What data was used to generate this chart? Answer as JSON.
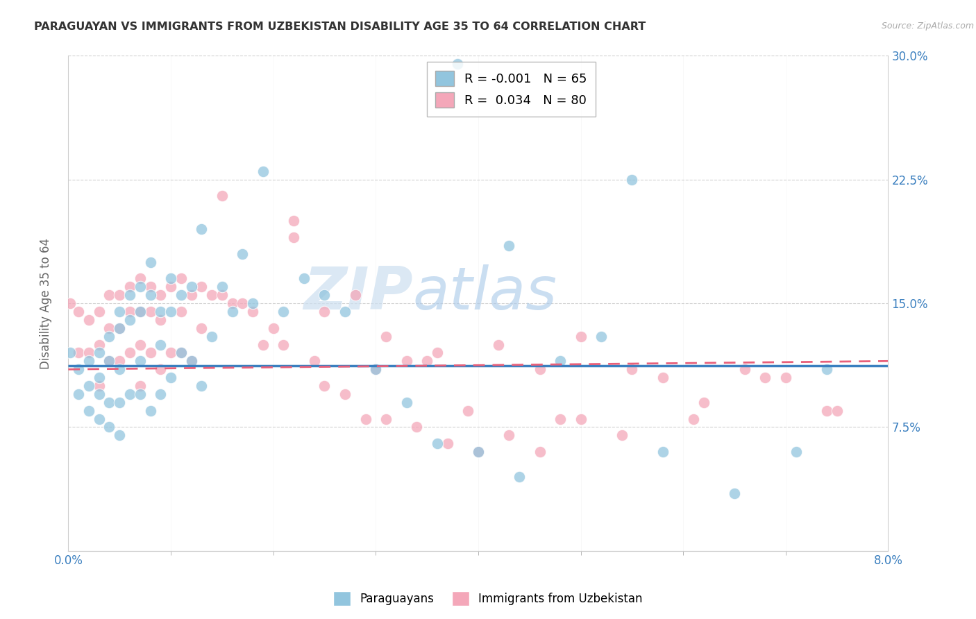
{
  "title": "PARAGUAYAN VS IMMIGRANTS FROM UZBEKISTAN DISABILITY AGE 35 TO 64 CORRELATION CHART",
  "source": "Source: ZipAtlas.com",
  "ylabel": "Disability Age 35 to 64",
  "xlim": [
    0.0,
    0.08
  ],
  "ylim": [
    0.0,
    0.3
  ],
  "yticks": [
    0.0,
    0.075,
    0.15,
    0.225,
    0.3
  ],
  "ytick_labels": [
    "",
    "7.5%",
    "15.0%",
    "22.5%",
    "30.0%"
  ],
  "xtick_vals": [
    0.0,
    0.08
  ],
  "xtick_labels": [
    "0.0%",
    "8.0%"
  ],
  "legend_r1": "R = -0.001",
  "legend_n1": "N = 65",
  "legend_r2": "R =  0.034",
  "legend_n2": "N = 80",
  "color_blue": "#92c5de",
  "color_pink": "#f4a7b9",
  "color_blue_line": "#3a7fbf",
  "color_pink_line": "#e8607a",
  "watermark_zip": "ZIP",
  "watermark_atlas": "atlas",
  "paraguayans_x": [
    0.0002,
    0.001,
    0.001,
    0.002,
    0.002,
    0.002,
    0.003,
    0.003,
    0.003,
    0.003,
    0.004,
    0.004,
    0.004,
    0.004,
    0.005,
    0.005,
    0.005,
    0.005,
    0.005,
    0.006,
    0.006,
    0.006,
    0.007,
    0.007,
    0.007,
    0.007,
    0.008,
    0.008,
    0.008,
    0.009,
    0.009,
    0.009,
    0.01,
    0.01,
    0.01,
    0.011,
    0.011,
    0.012,
    0.012,
    0.013,
    0.013,
    0.014,
    0.015,
    0.016,
    0.017,
    0.018,
    0.019,
    0.021,
    0.023,
    0.025,
    0.027,
    0.03,
    0.033,
    0.036,
    0.04,
    0.044,
    0.048,
    0.052,
    0.058,
    0.065,
    0.071,
    0.038,
    0.043,
    0.055,
    0.074
  ],
  "paraguayans_y": [
    0.12,
    0.11,
    0.095,
    0.115,
    0.1,
    0.085,
    0.105,
    0.12,
    0.095,
    0.08,
    0.13,
    0.115,
    0.09,
    0.075,
    0.145,
    0.135,
    0.11,
    0.09,
    0.07,
    0.155,
    0.14,
    0.095,
    0.16,
    0.145,
    0.115,
    0.095,
    0.175,
    0.155,
    0.085,
    0.145,
    0.125,
    0.095,
    0.165,
    0.145,
    0.105,
    0.155,
    0.12,
    0.16,
    0.115,
    0.195,
    0.1,
    0.13,
    0.16,
    0.145,
    0.18,
    0.15,
    0.23,
    0.145,
    0.165,
    0.155,
    0.145,
    0.11,
    0.09,
    0.065,
    0.06,
    0.045,
    0.115,
    0.13,
    0.06,
    0.035,
    0.06,
    0.295,
    0.185,
    0.225,
    0.11
  ],
  "uzbekistan_x": [
    0.0002,
    0.001,
    0.001,
    0.002,
    0.002,
    0.003,
    0.003,
    0.003,
    0.004,
    0.004,
    0.004,
    0.005,
    0.005,
    0.005,
    0.006,
    0.006,
    0.006,
    0.007,
    0.007,
    0.007,
    0.007,
    0.008,
    0.008,
    0.008,
    0.009,
    0.009,
    0.009,
    0.01,
    0.01,
    0.011,
    0.011,
    0.011,
    0.012,
    0.012,
    0.013,
    0.013,
    0.014,
    0.015,
    0.015,
    0.016,
    0.017,
    0.018,
    0.019,
    0.02,
    0.021,
    0.022,
    0.024,
    0.025,
    0.027,
    0.029,
    0.031,
    0.033,
    0.036,
    0.039,
    0.042,
    0.046,
    0.05,
    0.055,
    0.061,
    0.068,
    0.074,
    0.03,
    0.035,
    0.048,
    0.022,
    0.025,
    0.028,
    0.031,
    0.034,
    0.037,
    0.04,
    0.043,
    0.046,
    0.05,
    0.054,
    0.058,
    0.062,
    0.066,
    0.07,
    0.075
  ],
  "uzbekistan_y": [
    0.15,
    0.145,
    0.12,
    0.14,
    0.12,
    0.145,
    0.125,
    0.1,
    0.155,
    0.135,
    0.115,
    0.155,
    0.135,
    0.115,
    0.16,
    0.145,
    0.12,
    0.165,
    0.145,
    0.125,
    0.1,
    0.16,
    0.145,
    0.12,
    0.155,
    0.14,
    0.11,
    0.16,
    0.12,
    0.165,
    0.145,
    0.12,
    0.155,
    0.115,
    0.16,
    0.135,
    0.155,
    0.215,
    0.155,
    0.15,
    0.15,
    0.145,
    0.125,
    0.135,
    0.125,
    0.19,
    0.115,
    0.1,
    0.095,
    0.08,
    0.08,
    0.115,
    0.12,
    0.085,
    0.125,
    0.11,
    0.13,
    0.11,
    0.08,
    0.105,
    0.085,
    0.11,
    0.115,
    0.08,
    0.2,
    0.145,
    0.155,
    0.13,
    0.075,
    0.065,
    0.06,
    0.07,
    0.06,
    0.08,
    0.07,
    0.105,
    0.09,
    0.11,
    0.105,
    0.085
  ],
  "trend_blue_y0": 0.112,
  "trend_blue_y1": 0.112,
  "trend_pink_y0": 0.11,
  "trend_pink_y1": 0.115
}
